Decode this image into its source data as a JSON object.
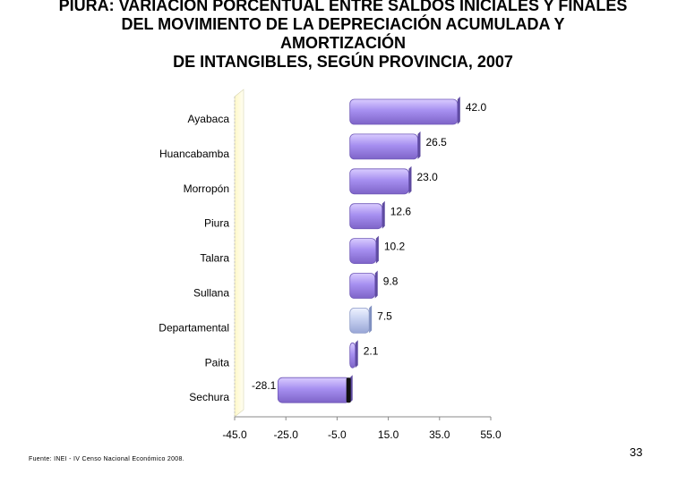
{
  "title_lines": [
    "PIURA: VARIACIÓN PORCENTUAL ENTRE SALDOS INICIALES Y FINALES",
    "DEL MOVIMIENTO DE LA DEPRECIACIÓN ACUMULADA Y",
    "AMORTIZACIÓN",
    "DE INTANGIBLES, SEGÚN PROVINCIA, 2007"
  ],
  "source": "Fuente: INEI - IV Censo Nacional Económico 2008.",
  "page_number": "33",
  "colors": {
    "bar": "#a68ff0",
    "bar_highlight": "#c6d0f0",
    "back_wall": "#fffde0",
    "axis": "#888888"
  },
  "chart_data": {
    "type": "bar",
    "orientation": "horizontal",
    "categories": [
      "Ayabaca",
      "Huancabamba",
      "Morropón",
      "Piura",
      "Talara",
      "Sullana",
      "Departamental",
      "Paita",
      "Sechura"
    ],
    "values": [
      42.0,
      26.5,
      23.0,
      12.6,
      10.2,
      9.8,
      7.5,
      2.1,
      -28.1
    ],
    "value_labels": [
      "42.0",
      "26.5",
      "23.0",
      "12.6",
      "10.2",
      "9.8",
      "7.5",
      "2.1",
      "-28.1"
    ],
    "highlight_category": "Departamental",
    "xlim": [
      -45.0,
      55.0
    ],
    "xticks": [
      "-45.0",
      "-25.0",
      "-5.0",
      "15.0",
      "35.0",
      "55.0"
    ],
    "title": "",
    "xlabel": "",
    "ylabel": "",
    "grid": false
  }
}
